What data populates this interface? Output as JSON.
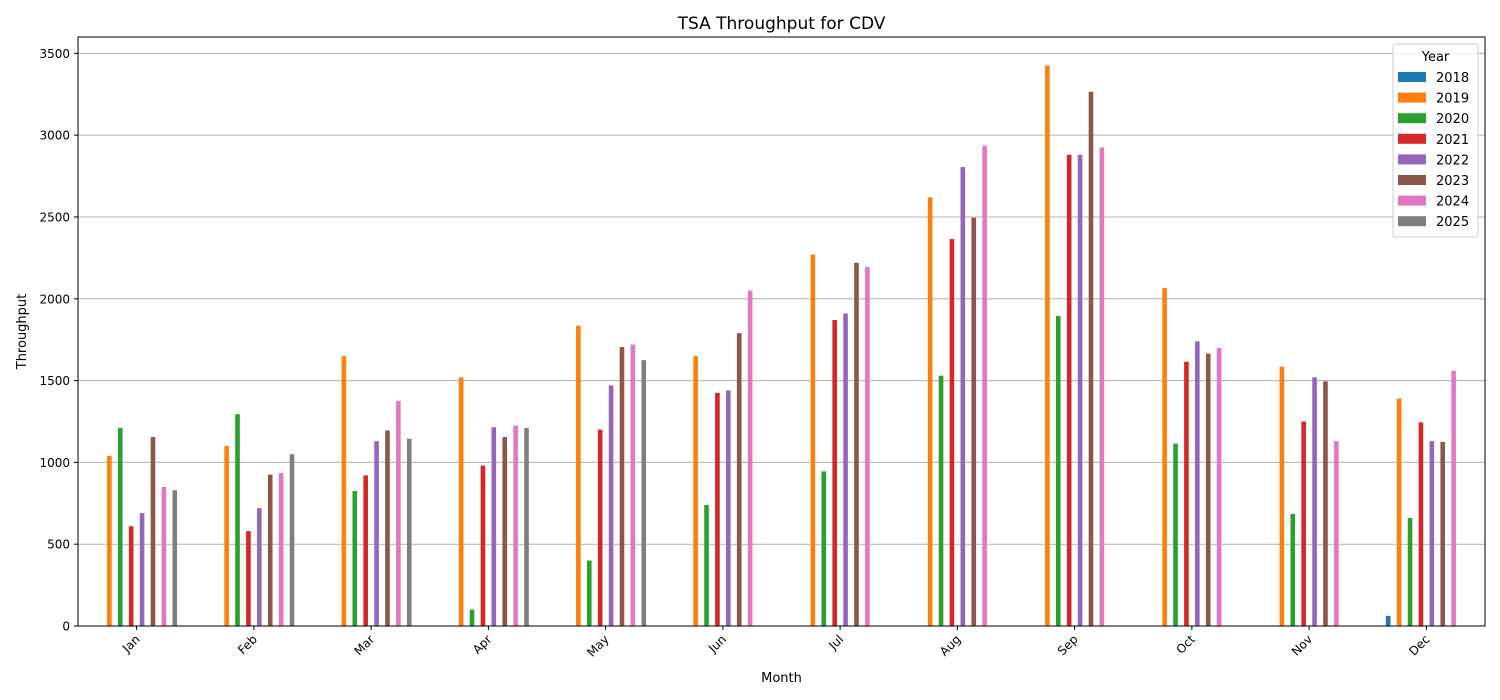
{
  "chart_data": {
    "type": "bar",
    "title": "TSA Throughput for CDV",
    "xlabel": "Month",
    "ylabel": "Throughput",
    "ylim": [
      0,
      3600
    ],
    "yticks": [
      0,
      500,
      1000,
      1500,
      2000,
      2500,
      3000,
      3500
    ],
    "grid": "y",
    "legend": {
      "title": "Year",
      "placement": "top-right"
    },
    "categories": [
      "Jan",
      "Feb",
      "Mar",
      "Apr",
      "May",
      "Jun",
      "Jul",
      "Aug",
      "Sep",
      "Oct",
      "Nov",
      "Dec"
    ],
    "series": [
      {
        "name": "2018",
        "color": "#1f77b4",
        "values": [
          0,
          0,
          0,
          0,
          0,
          0,
          0,
          0,
          0,
          0,
          0,
          62
        ]
      },
      {
        "name": "2019",
        "color": "#ff7f0e",
        "values": [
          1040,
          1100,
          1650,
          1520,
          1835,
          1650,
          2270,
          2620,
          3425,
          2065,
          1585,
          1390
        ]
      },
      {
        "name": "2020",
        "color": "#2ca02c",
        "values": [
          1210,
          1295,
          825,
          100,
          400,
          740,
          945,
          1530,
          1895,
          1115,
          685,
          660
        ]
      },
      {
        "name": "2021",
        "color": "#d62728",
        "values": [
          610,
          580,
          920,
          980,
          1200,
          1425,
          1870,
          2365,
          2880,
          1615,
          1250,
          1245
        ]
      },
      {
        "name": "2022",
        "color": "#9467bd",
        "values": [
          690,
          720,
          1130,
          1215,
          1470,
          1440,
          1910,
          2805,
          2880,
          1740,
          1520,
          1130
        ]
      },
      {
        "name": "2023",
        "color": "#8c564b",
        "values": [
          1155,
          925,
          1195,
          1155,
          1705,
          1790,
          2220,
          2495,
          3265,
          1665,
          1495,
          1125
        ]
      },
      {
        "name": "2024",
        "color": "#e377c2",
        "values": [
          850,
          935,
          1375,
          1225,
          1720,
          2050,
          2195,
          2935,
          2925,
          1700,
          1130,
          1560
        ]
      },
      {
        "name": "2025",
        "color": "#7f7f7f",
        "values": [
          830,
          1050,
          1145,
          1210,
          1625,
          0,
          0,
          0,
          0,
          0,
          0,
          0
        ]
      }
    ]
  }
}
